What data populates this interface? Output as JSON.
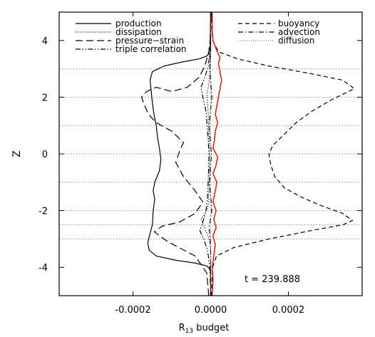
{
  "chart_data": {
    "type": "line",
    "title": "",
    "xlabel": "R",
    "xlabel_sub": "13",
    "xlabel_rest": " budget",
    "ylabel": "Z",
    "xlim": [
      -0.00039,
      0.00039
    ],
    "ylim": [
      -5,
      5
    ],
    "x_ticks": [
      {
        "value": -0.0002,
        "label": "-0.0002"
      },
      {
        "value": 0.0,
        "label": "0.0000"
      },
      {
        "value": 0.0002,
        "label": "0.0002"
      }
    ],
    "y_ticks": [
      {
        "value": -4,
        "label": "-4"
      },
      {
        "value": -2,
        "label": "-2"
      },
      {
        "value": 0,
        "label": "0"
      },
      {
        "value": 2,
        "label": "2"
      },
      {
        "value": 4,
        "label": "4"
      }
    ],
    "gridlines_y": [
      -3,
      -2.5,
      -2,
      -1,
      0,
      1,
      2,
      3
    ],
    "annotation": "t = 239.888",
    "legend_left": [
      "production",
      "dissipation",
      "pressure−strain",
      "triple correlation"
    ],
    "legend_right": [
      "buoyancy",
      "advection",
      "diffusion"
    ],
    "series": [
      {
        "name": "production",
        "style": "solid",
        "color": "#000000",
        "points": [
          [
            0,
            -5
          ],
          [
            0,
            -4.2
          ],
          [
            -3e-06,
            -4.05
          ],
          [
            -1e-05,
            -3.95
          ],
          [
            -4e-05,
            -3.85
          ],
          [
            -9e-05,
            -3.75
          ],
          [
            -0.00014,
            -3.6
          ],
          [
            -0.000158,
            -3.4
          ],
          [
            -0.000162,
            -3.15
          ],
          [
            -0.000158,
            -2.9
          ],
          [
            -0.00015,
            -2.5
          ],
          [
            -0.000148,
            -2.0
          ],
          [
            -0.000144,
            -1.6
          ],
          [
            -0.000148,
            -1.3
          ],
          [
            -0.000144,
            -1.0
          ],
          [
            -0.000132,
            -0.6
          ],
          [
            -0.000128,
            -0.2
          ],
          [
            -0.000132,
            0.2
          ],
          [
            -0.000137,
            0.6
          ],
          [
            -0.00014,
            1.0
          ],
          [
            -0.000146,
            1.4
          ],
          [
            -0.00015,
            1.8
          ],
          [
            -0.000153,
            2.2
          ],
          [
            -0.000156,
            2.6
          ],
          [
            -0.00015,
            2.9
          ],
          [
            -0.00012,
            3.1
          ],
          [
            -7e-05,
            3.25
          ],
          [
            -3e-05,
            3.35
          ],
          [
            -1e-05,
            3.45
          ],
          [
            0,
            3.6
          ],
          [
            0,
            5
          ]
        ]
      },
      {
        "name": "dissipation",
        "style": "dotted",
        "color": "#000000",
        "points": [
          [
            0,
            -5
          ],
          [
            0,
            -3.4
          ],
          [
            -4e-06,
            -3.0
          ],
          [
            -1.6e-05,
            -2.6
          ],
          [
            -2.4e-05,
            -2.3
          ],
          [
            -1.4e-05,
            -2.1
          ],
          [
            -6e-06,
            -1.8
          ],
          [
            -4e-06,
            -1.2
          ],
          [
            -3e-06,
            -0.5
          ],
          [
            -4e-06,
            0.3
          ],
          [
            -5e-06,
            1.0
          ],
          [
            -7e-06,
            1.6
          ],
          [
            -1e-05,
            2.1
          ],
          [
            -4e-06,
            2.5
          ],
          [
            -2e-06,
            3.0
          ],
          [
            0,
            3.4
          ],
          [
            0,
            5
          ]
        ]
      },
      {
        "name": "pressure−strain",
        "style": "longdash",
        "color": "#000000",
        "points": [
          [
            -5e-06,
            -5
          ],
          [
            -1e-05,
            -4.2
          ],
          [
            -4e-05,
            -3.6
          ],
          [
            -0.00011,
            -3.1
          ],
          [
            -0.000145,
            -2.75
          ],
          [
            -0.000125,
            -2.55
          ],
          [
            -8e-05,
            -2.4
          ],
          [
            -4e-05,
            -2.1
          ],
          [
            -2e-05,
            -1.7
          ],
          [
            -4e-05,
            -1.3
          ],
          [
            -7e-05,
            -0.8
          ],
          [
            -9e-05,
            -0.3
          ],
          [
            -8e-05,
            0.1
          ],
          [
            -7e-05,
            0.4
          ],
          [
            -0.0001,
            0.8
          ],
          [
            -0.00014,
            1.1
          ],
          [
            -0.00016,
            1.4
          ],
          [
            -0.00017,
            1.7
          ],
          [
            -0.000178,
            2.0
          ],
          [
            -0.000165,
            2.2
          ],
          [
            -0.00014,
            2.35
          ],
          [
            -0.0001,
            2.2
          ],
          [
            -6e-05,
            2.35
          ],
          [
            -3e-05,
            2.7
          ],
          [
            -1.5e-05,
            3.1
          ],
          [
            -5e-06,
            3.6
          ],
          [
            0,
            4.2
          ],
          [
            2e-06,
            5
          ]
        ]
      },
      {
        "name": "triple correlation",
        "style": "dashdotdot",
        "color": "#000000",
        "points": [
          [
            0,
            -5
          ],
          [
            -2e-06,
            -4.0
          ],
          [
            -8e-06,
            -3.4
          ],
          [
            -1.8e-05,
            -3.0
          ],
          [
            -2.8e-05,
            -2.7
          ],
          [
            -2e-05,
            -2.4
          ],
          [
            -1.2e-05,
            -2.0
          ],
          [
            -8e-06,
            -1.5
          ],
          [
            -6e-06,
            -0.8
          ],
          [
            -4e-06,
            0.0
          ],
          [
            -8e-06,
            0.8
          ],
          [
            -1.2e-05,
            1.5
          ],
          [
            -2e-05,
            2.0
          ],
          [
            -2.5e-05,
            2.35
          ],
          [
            -1.5e-05,
            2.7
          ],
          [
            -6e-06,
            3.1
          ],
          [
            -2e-06,
            3.6
          ],
          [
            0,
            5
          ]
        ]
      },
      {
        "name": "buoyancy",
        "style": "dashed",
        "color": "#000000",
        "points": [
          [
            2e-06,
            -5
          ],
          [
            5e-06,
            -4.0
          ],
          [
            1.5e-05,
            -3.6
          ],
          [
            6e-05,
            -3.3
          ],
          [
            0.00015,
            -3.0
          ],
          [
            0.00026,
            -2.7
          ],
          [
            0.00034,
            -2.5
          ],
          [
            0.000365,
            -2.35
          ],
          [
            0.00034,
            -2.1
          ],
          [
            0.00028,
            -1.8
          ],
          [
            0.00023,
            -1.5
          ],
          [
            0.00019,
            -1.2
          ],
          [
            0.000165,
            -0.8
          ],
          [
            0.000155,
            -0.4
          ],
          [
            0.00015,
            0.0
          ],
          [
            0.00016,
            0.3
          ],
          [
            0.00019,
            0.7
          ],
          [
            0.00022,
            1.1
          ],
          [
            0.00026,
            1.5
          ],
          [
            0.00031,
            1.9
          ],
          [
            0.00037,
            2.3
          ],
          [
            0.00034,
            2.6
          ],
          [
            0.00025,
            2.85
          ],
          [
            0.00015,
            3.1
          ],
          [
            7e-05,
            3.35
          ],
          [
            2e-05,
            3.6
          ],
          [
            5e-06,
            4.0
          ],
          [
            2e-06,
            5
          ]
        ]
      },
      {
        "name": "advection",
        "style": "dashdot",
        "color": "#000000",
        "points": [
          [
            0,
            -5
          ],
          [
            0,
            -3.2
          ],
          [
            -4e-06,
            -2.6
          ],
          [
            3e-06,
            -2.0
          ],
          [
            -3e-06,
            -1.0
          ],
          [
            2e-06,
            0.0
          ],
          [
            -4e-06,
            1.0
          ],
          [
            3e-06,
            2.0
          ],
          [
            -2e-06,
            3.0
          ],
          [
            0,
            5
          ]
        ]
      },
      {
        "name": "diffusion",
        "style": "dotted_light",
        "color": "#888888",
        "points": [
          [
            0,
            -5
          ],
          [
            0,
            5
          ]
        ]
      },
      {
        "name": "",
        "style": "solid",
        "color": "#ff0000",
        "points": [
          [
            4e-06,
            -5
          ],
          [
            6e-06,
            -4.4
          ],
          [
            4e-06,
            -4.0
          ],
          [
            8e-06,
            -3.6
          ],
          [
            1.2e-05,
            -3.2
          ],
          [
            6e-06,
            -2.9
          ],
          [
            1.4e-05,
            -2.6
          ],
          [
            8e-06,
            -2.3
          ],
          [
            1.4e-05,
            -2.0
          ],
          [
            6e-06,
            -1.7
          ],
          [
            1.2e-05,
            -1.3
          ],
          [
            1.6e-05,
            -1.0
          ],
          [
            6e-06,
            -0.7
          ],
          [
            1.4e-05,
            -0.4
          ],
          [
            1.8e-05,
            -0.1
          ],
          [
            6e-06,
            0.2
          ],
          [
            1e-05,
            0.5
          ],
          [
            1.2e-05,
            0.8
          ],
          [
            1.8e-05,
            1.1
          ],
          [
            1.2e-05,
            1.4
          ],
          [
            1.6e-05,
            1.7
          ],
          [
            2e-05,
            2.0
          ],
          [
            2.4e-05,
            2.3
          ],
          [
            2.8e-05,
            2.6
          ],
          [
            2.4e-05,
            2.9
          ],
          [
            2e-05,
            3.2
          ],
          [
            2.4e-05,
            3.4
          ],
          [
            1.4e-05,
            3.7
          ],
          [
            6e-06,
            4.0
          ],
          [
            4e-06,
            4.4
          ],
          [
            4e-06,
            5
          ]
        ]
      }
    ]
  }
}
